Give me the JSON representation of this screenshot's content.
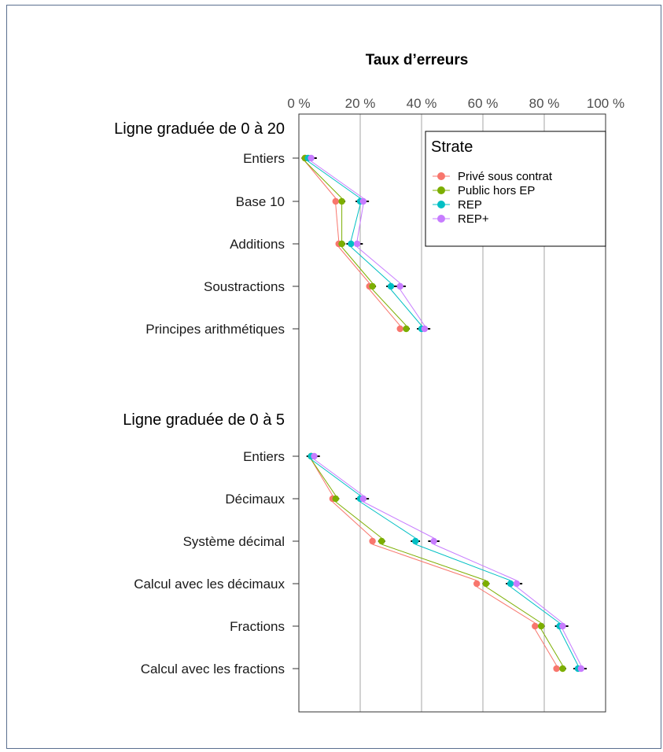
{
  "chart_data": {
    "type": "scatter",
    "title": "Taux d’erreurs",
    "x_ticks": [
      "0 %",
      "20 %",
      "40 %",
      "60 %",
      "80 %",
      "100 %"
    ],
    "xlim": [
      0,
      100
    ],
    "legend": {
      "title": "Strate",
      "position": "top-right",
      "entries": [
        {
          "name": "Privé sous contrat",
          "color": "#F8766D"
        },
        {
          "name": "Public hors EP",
          "color": "#7CAE00"
        },
        {
          "name": "REP",
          "color": "#00BFC4"
        },
        {
          "name": "REP+",
          "color": "#C77CFF"
        }
      ]
    },
    "groups": [
      {
        "title": "Ligne graduée de 0 à 20",
        "rows": [
          {
            "label": "Entiers",
            "values": [
              2,
              2,
              3,
              4
            ]
          },
          {
            "label": "Base 10",
            "values": [
              12,
              14,
              20,
              21
            ]
          },
          {
            "label": "Additions",
            "values": [
              13,
              14,
              17,
              19
            ]
          },
          {
            "label": "Soustractions",
            "values": [
              23,
              24,
              30,
              33
            ]
          },
          {
            "label": "Principes arithmétiques",
            "values": [
              33,
              35,
              40,
              41
            ]
          }
        ]
      },
      {
        "title": "Ligne graduée de 0 à 5",
        "rows": [
          {
            "label": "Entiers",
            "values": [
              4,
              4,
              4,
              5
            ]
          },
          {
            "label": "Décimaux",
            "values": [
              11,
              12,
              20,
              21
            ]
          },
          {
            "label": "Système décimal",
            "values": [
              24,
              27,
              38,
              44
            ]
          },
          {
            "label": "Calcul avec les décimaux",
            "values": [
              58,
              61,
              69,
              71
            ]
          },
          {
            "label": "Fractions",
            "values": [
              77,
              79,
              85,
              86
            ]
          },
          {
            "label": "Calcul avec les fractions",
            "values": [
              84,
              86,
              91,
              92
            ]
          }
        ]
      }
    ]
  }
}
